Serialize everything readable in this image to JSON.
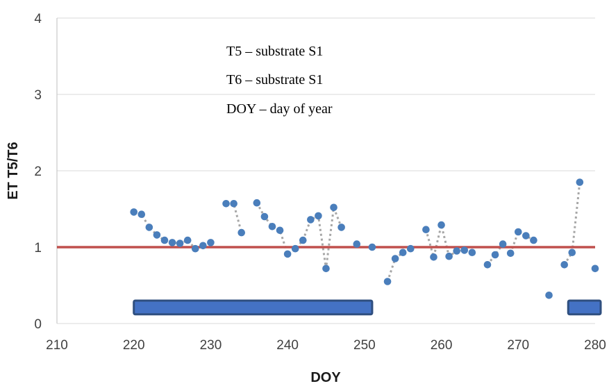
{
  "chart_data": {
    "type": "scatter",
    "xlabel": "DOY",
    "ylabel": "ET T5/T6",
    "xlim": [
      210,
      280
    ],
    "ylim": [
      0,
      4
    ],
    "xticks": [
      "210",
      "220",
      "230",
      "240",
      "250",
      "260",
      "270",
      "280"
    ],
    "yticks": [
      "0",
      "1",
      "2",
      "3",
      "4"
    ],
    "grid": "horizontal",
    "annotations": [
      "T5 – substrate S1",
      "T6 – substrate S1",
      "DOY – day of year"
    ],
    "reference_line": {
      "y": 1,
      "color": "#c0504d"
    },
    "marker_color": "#4a7ebb",
    "connector_color": "#a6a6a6",
    "bar_color": "#4472c4",
    "segments": [
      [
        [
          220,
          1.46
        ],
        [
          221,
          1.43
        ],
        [
          222,
          1.26
        ],
        [
          223,
          1.16
        ],
        [
          224,
          1.09
        ],
        [
          225,
          1.06
        ],
        [
          226,
          1.05
        ],
        [
          227,
          1.09
        ],
        [
          228,
          0.98
        ],
        [
          229,
          1.02
        ],
        [
          230,
          1.06
        ]
      ],
      [
        [
          232,
          1.57
        ],
        [
          233,
          1.57
        ],
        [
          234,
          1.19
        ]
      ],
      [
        [
          236,
          1.58
        ],
        [
          237,
          1.4
        ],
        [
          238,
          1.27
        ],
        [
          239,
          1.22
        ],
        [
          240,
          0.91
        ],
        [
          241,
          0.98
        ],
        [
          242,
          1.09
        ],
        [
          243,
          1.36
        ],
        [
          244,
          1.41
        ],
        [
          245,
          0.72
        ],
        [
          246,
          1.52
        ],
        [
          247,
          1.26
        ]
      ],
      [
        [
          249,
          1.04
        ]
      ],
      [
        [
          251,
          1.0
        ]
      ],
      [
        [
          253,
          0.55
        ],
        [
          254,
          0.85
        ],
        [
          255,
          0.93
        ],
        [
          256,
          0.98
        ]
      ],
      [
        [
          258,
          1.23
        ],
        [
          259,
          0.87
        ],
        [
          260,
          1.29
        ],
        [
          261,
          0.88
        ],
        [
          262,
          0.95
        ],
        [
          263,
          0.96
        ],
        [
          264,
          0.93
        ]
      ],
      [
        [
          266,
          0.77
        ],
        [
          267,
          0.9
        ],
        [
          268,
          1.04
        ]
      ],
      [
        [
          269,
          0.92
        ],
        [
          270,
          1.2
        ],
        [
          271,
          1.15
        ],
        [
          272,
          1.09
        ]
      ],
      [
        [
          274,
          0.37
        ]
      ],
      [
        [
          276,
          0.77
        ],
        [
          277,
          0.93
        ],
        [
          278,
          1.85
        ]
      ],
      [
        [
          280,
          0.72
        ]
      ]
    ],
    "bars": [
      {
        "x0": 220,
        "x1": 251,
        "y0": 0.12,
        "y1": 0.3
      },
      {
        "x0": 276.5,
        "x1": 281,
        "y0": 0.12,
        "y1": 0.3
      }
    ]
  }
}
